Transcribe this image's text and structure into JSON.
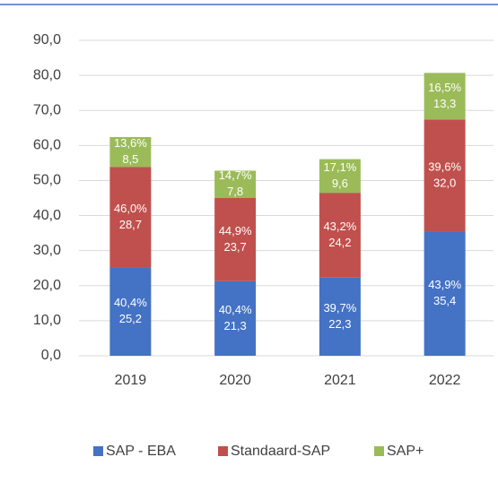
{
  "chart_data": {
    "type": "stacked_bar",
    "categories": [
      "2019",
      "2020",
      "2021",
      "2022"
    ],
    "series": [
      {
        "name": "SAP - EBA",
        "color": "#4472c4",
        "values": [
          25.2,
          21.3,
          22.3,
          35.4
        ],
        "value_labels": [
          "25,2",
          "21,3",
          "22,3",
          "35,4"
        ],
        "share_labels": [
          "40,4%",
          "40,4%",
          "39,7%",
          "43,9%"
        ]
      },
      {
        "name": "Standaard-SAP",
        "color": "#c0504d",
        "values": [
          28.7,
          23.7,
          24.2,
          32.0
        ],
        "value_labels": [
          "28,7",
          "23,7",
          "24,2",
          "32,0"
        ],
        "share_labels": [
          "46,0%",
          "44,9%",
          "43,2%",
          "39,6%"
        ]
      },
      {
        "name": "SAP+",
        "color": "#9bbb59",
        "values": [
          8.5,
          7.8,
          9.6,
          13.3
        ],
        "value_labels": [
          "8,5",
          "7,8",
          "9,6",
          "13,3"
        ],
        "share_labels": [
          "13,6%",
          "14,7%",
          "17,1%",
          "16,5%"
        ]
      }
    ],
    "ylim": [
      0,
      90
    ],
    "yticks": [
      {
        "value": 0,
        "label": "0,0"
      },
      {
        "value": 10,
        "label": "10,0"
      },
      {
        "value": 20,
        "label": "20,0"
      },
      {
        "value": 30,
        "label": "30,0"
      },
      {
        "value": 40,
        "label": "40,0"
      },
      {
        "value": 50,
        "label": "50,0"
      },
      {
        "value": 60,
        "label": "60,0"
      },
      {
        "value": 70,
        "label": "70,0"
      },
      {
        "value": 80,
        "label": "80,0"
      },
      {
        "value": 90,
        "label": "90,0"
      }
    ],
    "grid": true
  }
}
